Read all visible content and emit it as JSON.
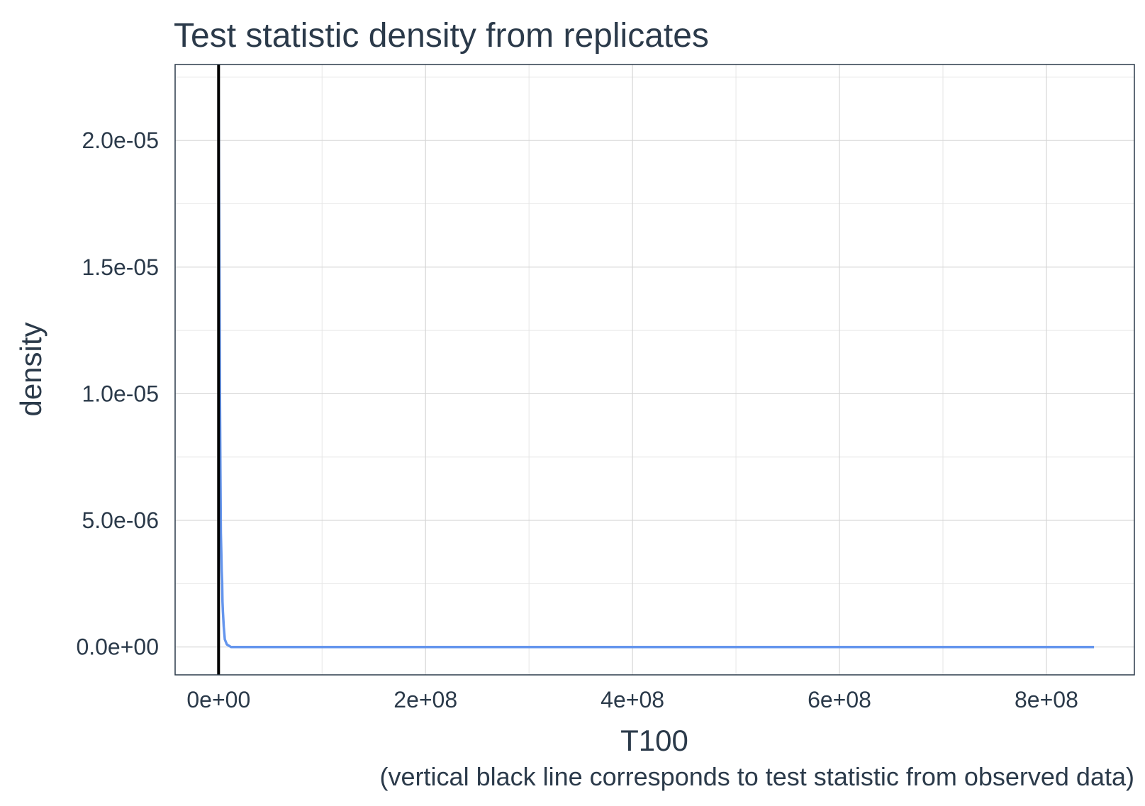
{
  "chart_data": {
    "type": "line",
    "title": "Test statistic density from replicates",
    "xlabel": "T100",
    "ylabel": "density",
    "caption": "(vertical black line corresponds to test statistic from observed data)",
    "xlim": [
      -42000000,
      885000000
    ],
    "ylim": [
      -1.1e-06,
      2.3e-05
    ],
    "x_ticks": [
      0,
      200000000,
      400000000,
      600000000,
      800000000
    ],
    "x_tick_labels": [
      "0e+00",
      "2e+08",
      "4e+08",
      "6e+08",
      "8e+08"
    ],
    "y_ticks": [
      0,
      5e-06,
      1e-05,
      1.5e-05,
      2e-05
    ],
    "y_tick_labels": [
      "0.0e+00",
      "5.0e-06",
      "1.0e-05",
      "1.5e-05",
      "2.0e-05"
    ],
    "grid": true,
    "legend": "none",
    "series": [
      {
        "color": "#6495ED",
        "x": [
          0,
          300000,
          600000,
          1000000,
          1400000,
          1800000,
          2200000,
          2600000,
          3000000,
          3400000,
          3800000,
          4200000,
          5000000,
          6000000,
          8000000,
          12000000,
          30000000,
          100000000,
          300000000,
          500000000,
          700000000,
          846000000
        ],
        "y": [
          2.2e-05,
          1.95e-05,
          1.65e-05,
          1.28e-05,
          9.5e-06,
          6.8e-06,
          4.5e-06,
          3.8e-06,
          3e-06,
          2.6e-06,
          1.8e-06,
          1.4e-06,
          8e-07,
          3e-07,
          1e-07,
          0.0,
          0.0,
          0.0,
          0.0,
          0.0,
          0.0,
          0.0
        ]
      }
    ],
    "vline": {
      "x": 0,
      "color": "#000000"
    }
  }
}
